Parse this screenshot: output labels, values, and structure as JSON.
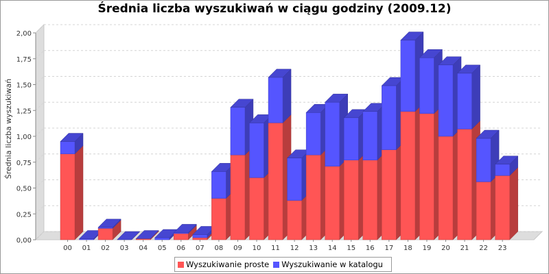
{
  "chart_data": {
    "type": "bar",
    "stacked": true,
    "title": "Średnia liczba wyszukiwań w ciągu godziny (2009.12)",
    "ylabel": "Średnia liczba wyszukiwań",
    "xlabel": "",
    "ylim": [
      0,
      2.0
    ],
    "yticks": [
      "0,00",
      "0,25",
      "0,50",
      "0,75",
      "1,00",
      "1,25",
      "1,50",
      "1,75",
      "2,00"
    ],
    "grid": true,
    "legend_position": "bottom",
    "categories": [
      "00",
      "01",
      "02",
      "03",
      "04",
      "05",
      "06",
      "07",
      "08",
      "09",
      "10",
      "11",
      "12",
      "13",
      "14",
      "15",
      "16",
      "17",
      "18",
      "19",
      "20",
      "21",
      "22",
      "23"
    ],
    "series": [
      {
        "name": "Wyszukiwanie proste",
        "color": "#ff5555",
        "values": [
          0.83,
          0.0,
          0.11,
          0.0,
          0.01,
          0.0,
          0.06,
          0.02,
          0.4,
          0.82,
          0.6,
          1.13,
          0.38,
          0.82,
          0.71,
          0.77,
          0.77,
          0.87,
          1.24,
          1.22,
          1.0,
          1.07,
          0.56,
          0.62
        ]
      },
      {
        "name": "Wyszukiwanie w katalogu",
        "color": "#5555ff",
        "values": [
          0.12,
          0.01,
          0.01,
          0.0,
          0.0,
          0.02,
          0.01,
          0.03,
          0.26,
          0.46,
          0.53,
          0.44,
          0.41,
          0.41,
          0.62,
          0.41,
          0.47,
          0.62,
          0.69,
          0.54,
          0.69,
          0.54,
          0.42,
          0.11
        ]
      }
    ]
  }
}
